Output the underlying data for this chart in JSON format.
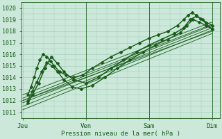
{
  "bg_color": "#cce8da",
  "grid_color": "#99ccb3",
  "line_color": "#1a5c1a",
  "ylabel_text": "Pression niveau de la mer( hPa )",
  "xtick_labels": [
    "Jeu",
    "Ven",
    "Sam",
    "Dim"
  ],
  "xtick_positions": [
    0,
    1,
    2,
    3
  ],
  "ylim": [
    1010.5,
    1020.5
  ],
  "yticks": [
    1011,
    1012,
    1013,
    1014,
    1015,
    1016,
    1017,
    1018,
    1019,
    1020
  ],
  "ensemble_starts": [
    1011.2,
    1011.5,
    1011.8,
    1012.0,
    1012.2,
    1012.5,
    1012.0
  ],
  "ensemble_ends": [
    1017.8,
    1018.1,
    1018.3,
    1018.5,
    1018.6,
    1018.8,
    1018.0
  ],
  "day_lines": [
    1,
    2,
    3
  ]
}
